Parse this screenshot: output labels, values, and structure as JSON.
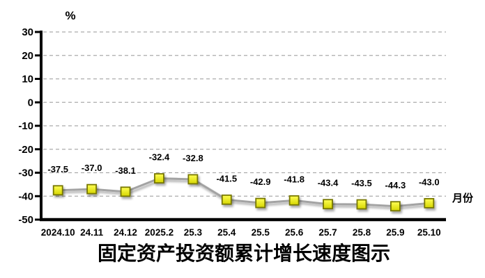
{
  "chart_data": {
    "type": "line",
    "title": "固定资产投资额累计增长速度图示",
    "ylabel": "%",
    "xlabel": "月份",
    "categories": [
      "2024.10",
      "24.11",
      "24.12",
      "2025.2",
      "25.3",
      "25.4",
      "25.5",
      "25.6",
      "25.7",
      "25.8",
      "25.9",
      "25.10"
    ],
    "values": [
      -37.5,
      -37.0,
      -38.1,
      -32.4,
      -32.8,
      -41.5,
      -42.9,
      -41.8,
      -43.4,
      -43.5,
      -44.3,
      -43.0
    ],
    "data_labels": [
      "-37.5",
      "-37.0",
      "-38.1",
      "-32.4",
      "-32.8",
      "-41.5",
      "-42.9",
      "-41.8",
      "-43.4",
      "-43.5",
      "-44.3",
      "-43.0"
    ],
    "ylim": [
      -50,
      30
    ],
    "yticks": [
      30,
      20,
      10,
      0,
      -10,
      -20,
      -30,
      -40,
      -50
    ],
    "grid": "horizontal-dashed",
    "legend": "none",
    "colors": {
      "line": "#A3A3A3",
      "marker_fill_top": "#FFFF55",
      "marker_fill_bottom": "#D6D600",
      "marker_border": "#777700",
      "grid": "#ABABAB",
      "axis": "#000000",
      "text": "#000000",
      "background": "#FFFFFF"
    }
  }
}
